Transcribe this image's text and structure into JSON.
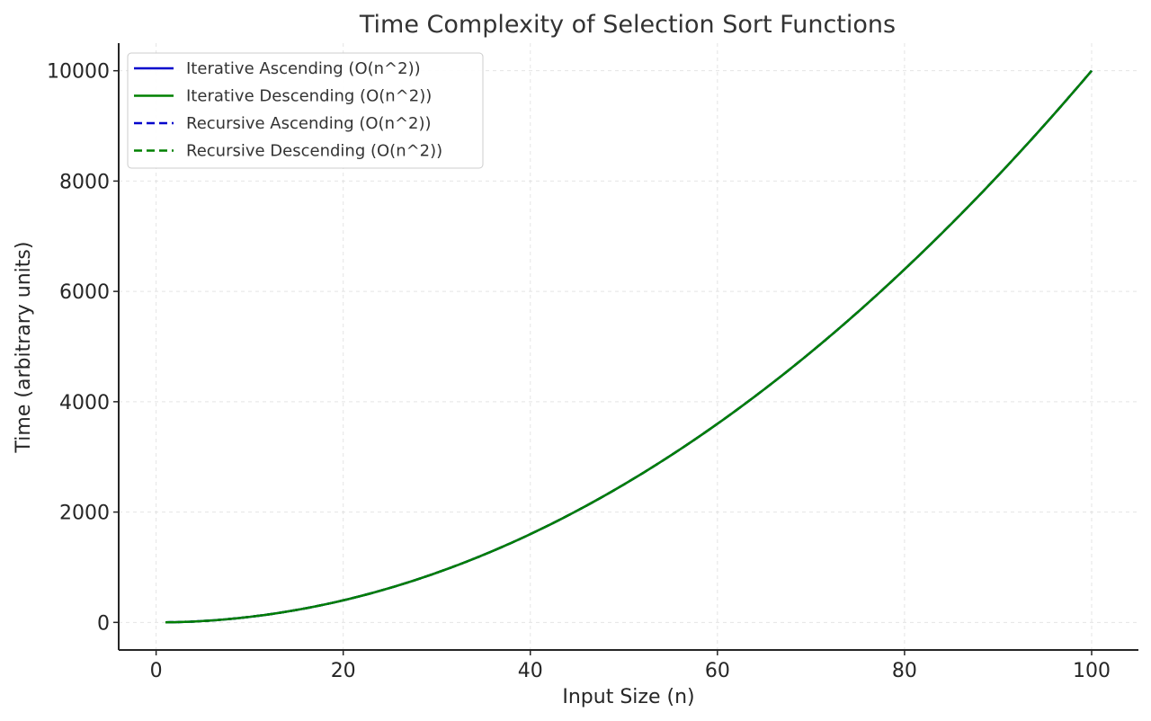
{
  "chart_data": {
    "type": "line",
    "title": "Time Complexity of Selection Sort Functions",
    "xlabel": "Input Size (n)",
    "ylabel": "Time (arbitrary units)",
    "xlim": [
      -4,
      105
    ],
    "ylim": [
      -500,
      10500
    ],
    "xticks": [
      0,
      20,
      40,
      60,
      80,
      100
    ],
    "yticks": [
      0,
      2000,
      4000,
      6000,
      8000,
      10000
    ],
    "grid": true,
    "legend_position": "top-left",
    "series": [
      {
        "name": "Iterative Ascending (O(n^2))",
        "color": "#0000cc",
        "style": "solid",
        "formula": "n^2",
        "x_start": 1,
        "x_end": 100
      },
      {
        "name": "Iterative Descending (O(n^2))",
        "color": "#008000",
        "style": "solid",
        "formula": "n^2",
        "x_start": 1,
        "x_end": 100
      },
      {
        "name": "Recursive Ascending (O(n^2))",
        "color": "#0000cc",
        "style": "dashed",
        "formula": "n^2",
        "x_start": 1,
        "x_end": 100
      },
      {
        "name": "Recursive Descending (O(n^2))",
        "color": "#008000",
        "style": "dashed",
        "formula": "n^2",
        "x_start": 1,
        "x_end": 100
      }
    ],
    "sample_points": {
      "x": [
        1,
        10,
        20,
        30,
        40,
        50,
        60,
        70,
        80,
        90,
        100
      ],
      "y": [
        1,
        100,
        400,
        900,
        1600,
        2500,
        3600,
        4900,
        6400,
        8100,
        10000
      ]
    }
  }
}
